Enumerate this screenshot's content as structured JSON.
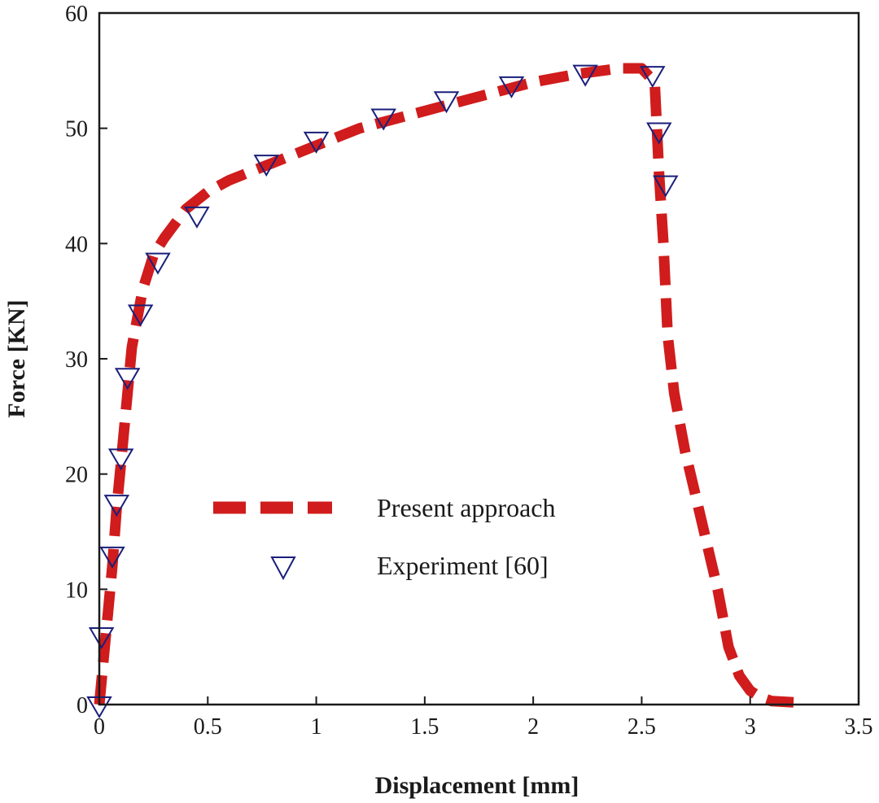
{
  "chart_data": {
    "type": "line",
    "xlabel": "Displacement [mm]",
    "ylabel": "Force [KN]",
    "xlim": [
      0,
      3.5
    ],
    "ylim": [
      0,
      60
    ],
    "x_ticks": [
      "0",
      "0.5",
      "1",
      "1.5",
      "2",
      "2.5",
      "3",
      "3.5"
    ],
    "y_ticks": [
      "0",
      "10",
      "20",
      "30",
      "40",
      "50",
      "60"
    ],
    "x_tick_values": [
      0,
      0.5,
      1,
      1.5,
      2,
      2.5,
      3,
      3.5
    ],
    "y_tick_values": [
      0,
      10,
      20,
      30,
      40,
      50,
      60
    ],
    "grid": false,
    "legend_position": "center-left",
    "series": [
      {
        "name": "Present approach",
        "style": "dashed-line",
        "color": "#d01c1c",
        "x": [
          0,
          0.02,
          0.04,
          0.06,
          0.08,
          0.1,
          0.12,
          0.15,
          0.2,
          0.25,
          0.3,
          0.4,
          0.5,
          0.6,
          0.8,
          1.0,
          1.2,
          1.4,
          1.6,
          1.8,
          2.0,
          2.2,
          2.4,
          2.5,
          2.56,
          2.57,
          2.58,
          2.6,
          2.62,
          2.65,
          2.7,
          2.75,
          2.8,
          2.85,
          2.9,
          2.95,
          3.0,
          3.05,
          3.1,
          3.2
        ],
        "y": [
          0,
          4,
          8,
          12,
          17,
          21,
          25,
          31,
          36,
          39,
          40.5,
          43,
          44.5,
          45.5,
          47,
          48.5,
          50,
          51,
          52,
          53,
          54,
          54.7,
          55.2,
          55.2,
          54,
          50,
          46,
          40,
          32,
          27,
          22,
          18,
          14,
          10,
          5,
          2.5,
          1.2,
          0.6,
          0.3,
          0.2
        ]
      },
      {
        "name": "Experiment [60]",
        "style": "marker-triangle-down",
        "color": "#1a1f7a",
        "x": [
          0,
          0.01,
          0.06,
          0.08,
          0.1,
          0.13,
          0.19,
          0.27,
          0.45,
          0.77,
          1.0,
          1.31,
          1.6,
          1.9,
          2.24,
          2.55,
          2.58,
          2.61
        ],
        "y": [
          0,
          6,
          13,
          17.5,
          21.5,
          28.5,
          34,
          38.5,
          42.5,
          47,
          49,
          51,
          52.5,
          53.8,
          54.8,
          54.7,
          49.8,
          45.2
        ]
      }
    ]
  },
  "legend": {
    "line_label": "Present approach",
    "marker_label": "Experiment [60]"
  },
  "colors": {
    "line": "#d01c1c",
    "marker": "#1a1f7a",
    "axis": "#1a1a1a"
  }
}
